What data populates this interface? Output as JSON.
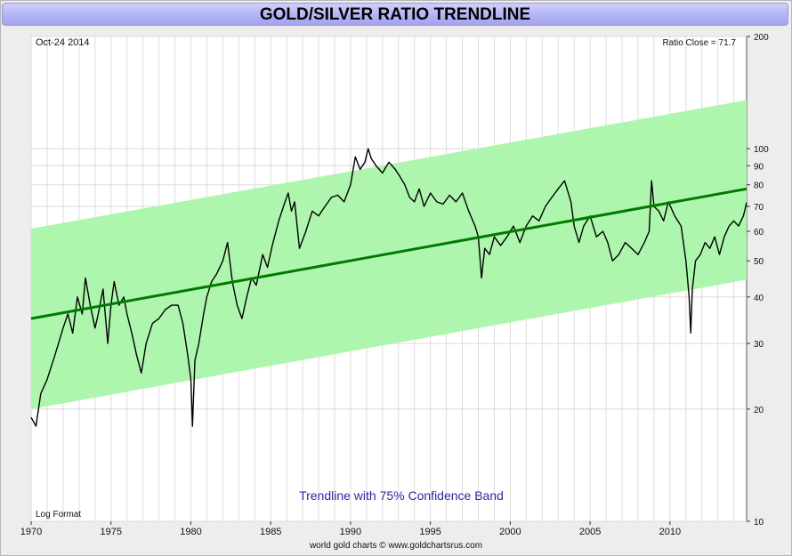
{
  "chart_data": {
    "type": "line",
    "title": "GOLD/SILVER RATIO TRENDLINE",
    "date_label": "Oct-24  2014",
    "close_label": "Ratio Close = 71.7",
    "scale_label": "Log Format",
    "band_label": "Trendline with 75% Confidence Band",
    "credit": "world gold charts © www.goldchartsrus.com",
    "y_scale": "log",
    "ylim": [
      10,
      200
    ],
    "xlim": [
      1970,
      2014.8
    ],
    "x_ticks": [
      1970,
      1975,
      1980,
      1985,
      1990,
      1995,
      2000,
      2005,
      2010
    ],
    "y_ticks": [
      10,
      20,
      30,
      40,
      50,
      60,
      70,
      80,
      90,
      100,
      200
    ],
    "grid": true,
    "trendline": {
      "name": "Trendline",
      "x": [
        1970,
        2014.8
      ],
      "y": [
        35,
        78
      ]
    },
    "band_upper": {
      "x": [
        1970,
        2014.8
      ],
      "y": [
        61,
        135
      ]
    },
    "band_lower": {
      "x": [
        1970,
        2014.8
      ],
      "y": [
        20,
        44.5
      ]
    },
    "colors": {
      "ratio": "#000000",
      "trend": "#007a00",
      "band": "#aaf5aa",
      "grid": "#dcdcdc",
      "title_bg": "#b4b4f5"
    },
    "series": [
      {
        "x": [
          1970.0,
          1970.3,
          1970.6,
          1971.0,
          1971.5,
          1972.0,
          1972.3,
          1972.6,
          1972.9,
          1973.2,
          1973.4,
          1973.7,
          1974.0,
          1974.2,
          1974.5,
          1974.8,
          1975.0,
          1975.2,
          1975.5,
          1975.8,
          1976.0,
          1976.3,
          1976.6,
          1976.9,
          1977.2,
          1977.6,
          1978.0,
          1978.4,
          1978.8,
          1979.2,
          1979.5,
          1979.8,
          1980.0,
          1980.1,
          1980.25,
          1980.5,
          1980.8,
          1981.0,
          1981.3,
          1981.6,
          1982.0,
          1982.3,
          1982.6,
          1982.9,
          1983.2,
          1983.5,
          1983.8,
          1984.1,
          1984.5,
          1984.8,
          1985.1,
          1985.5,
          1985.9,
          1986.1,
          1986.3,
          1986.5,
          1986.8,
          1987.2,
          1987.6,
          1988.0,
          1988.4,
          1988.8,
          1989.2,
          1989.6,
          1990.0,
          1990.3,
          1990.6,
          1990.9,
          1991.1,
          1991.3,
          1991.6,
          1992.0,
          1992.4,
          1992.8,
          1993.1,
          1993.4,
          1993.7,
          1994.0,
          1994.3,
          1994.6,
          1995.0,
          1995.4,
          1995.8,
          1996.2,
          1996.6,
          1997.0,
          1997.4,
          1997.8,
          1998.0,
          1998.2,
          1998.4,
          1998.7,
          1999.0,
          1999.4,
          1999.8,
          2000.2,
          2000.6,
          2001.0,
          2001.4,
          2001.8,
          2002.2,
          2002.6,
          2003.0,
          2003.4,
          2003.8,
          2004.0,
          2004.3,
          2004.6,
          2005.0,
          2005.4,
          2005.8,
          2006.1,
          2006.4,
          2006.8,
          2007.2,
          2007.6,
          2008.0,
          2008.4,
          2008.7,
          2008.85,
          2009.0,
          2009.3,
          2009.6,
          2009.9,
          2010.3,
          2010.7,
          2011.0,
          2011.2,
          2011.3,
          2011.4,
          2011.6,
          2011.9,
          2012.2,
          2012.5,
          2012.8,
          2013.1,
          2013.4,
          2013.7,
          2014.0,
          2014.3,
          2014.6,
          2014.8
        ],
        "values": [
          19,
          18,
          22,
          24,
          28,
          33,
          36,
          32,
          40,
          36,
          45,
          38,
          33,
          36,
          42,
          30,
          38,
          44,
          38,
          40,
          36,
          32,
          28,
          25,
          30,
          34,
          35,
          37,
          38,
          38,
          34,
          28,
          24,
          18,
          27,
          30,
          36,
          40,
          44,
          46,
          50,
          56,
          44,
          38,
          35,
          40,
          45,
          43,
          52,
          48,
          55,
          64,
          72,
          76,
          68,
          72,
          54,
          60,
          68,
          66,
          70,
          74,
          75,
          72,
          80,
          95,
          88,
          92,
          100,
          94,
          90,
          86,
          92,
          88,
          84,
          80,
          74,
          72,
          78,
          70,
          76,
          72,
          71,
          75,
          72,
          76,
          68,
          62,
          58,
          45,
          54,
          52,
          58,
          55,
          58,
          62,
          56,
          62,
          66,
          64,
          70,
          74,
          78,
          82,
          72,
          62,
          56,
          62,
          66,
          58,
          60,
          56,
          50,
          52,
          56,
          54,
          52,
          56,
          60,
          82,
          70,
          68,
          64,
          72,
          66,
          62,
          50,
          40,
          32,
          42,
          50,
          52,
          56,
          54,
          58,
          52,
          58,
          62,
          64,
          62,
          66,
          71.7
        ]
      }
    ]
  }
}
